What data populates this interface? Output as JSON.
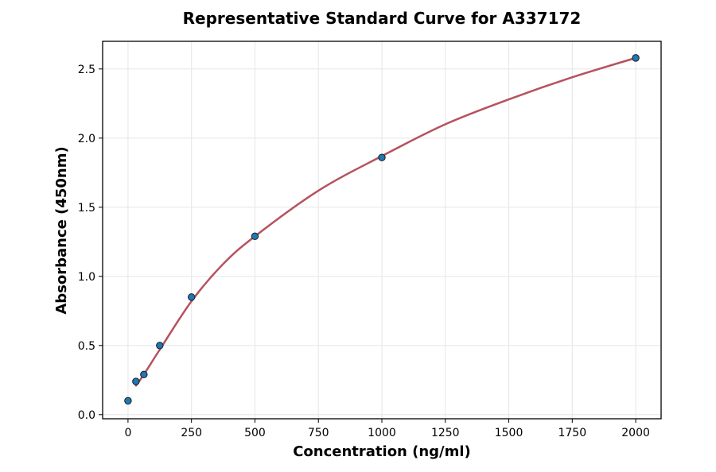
{
  "chart_data": {
    "type": "scatter",
    "title": "Representative Standard Curve for A337172",
    "xlabel": "Concentration (ng/ml)",
    "ylabel": "Absorbance (450nm)",
    "xlim": [
      -100,
      2100
    ],
    "ylim": [
      -0.03,
      2.7
    ],
    "xticks": [
      0,
      250,
      500,
      750,
      1000,
      1250,
      1500,
      1750,
      2000
    ],
    "yticks": [
      0.0,
      0.5,
      1.0,
      1.5,
      2.0,
      2.5
    ],
    "xtick_labels": [
      "0",
      "250",
      "500",
      "750",
      "1000",
      "1250",
      "1500",
      "1750",
      "2000"
    ],
    "ytick_labels": [
      "0.0",
      "0.5",
      "1.0",
      "1.5",
      "2.0",
      "2.5"
    ],
    "grid": true,
    "series": [
      {
        "kind": "points",
        "x": [
          0,
          31.25,
          62.5,
          125,
          250,
          500,
          1000,
          2000
        ],
        "y": [
          0.1,
          0.24,
          0.29,
          0.5,
          0.85,
          1.29,
          1.86,
          2.58
        ],
        "color": "#1f77b4"
      },
      {
        "kind": "fit-curve",
        "x": [
          31.25,
          62.5,
          125,
          250,
          375,
          500,
          750,
          1000,
          1250,
          1500,
          1750,
          2000
        ],
        "y": [
          0.21,
          0.29,
          0.47,
          0.82,
          1.09,
          1.29,
          1.62,
          1.87,
          2.1,
          2.28,
          2.44,
          2.58
        ],
        "color": "#b5525f"
      }
    ]
  }
}
